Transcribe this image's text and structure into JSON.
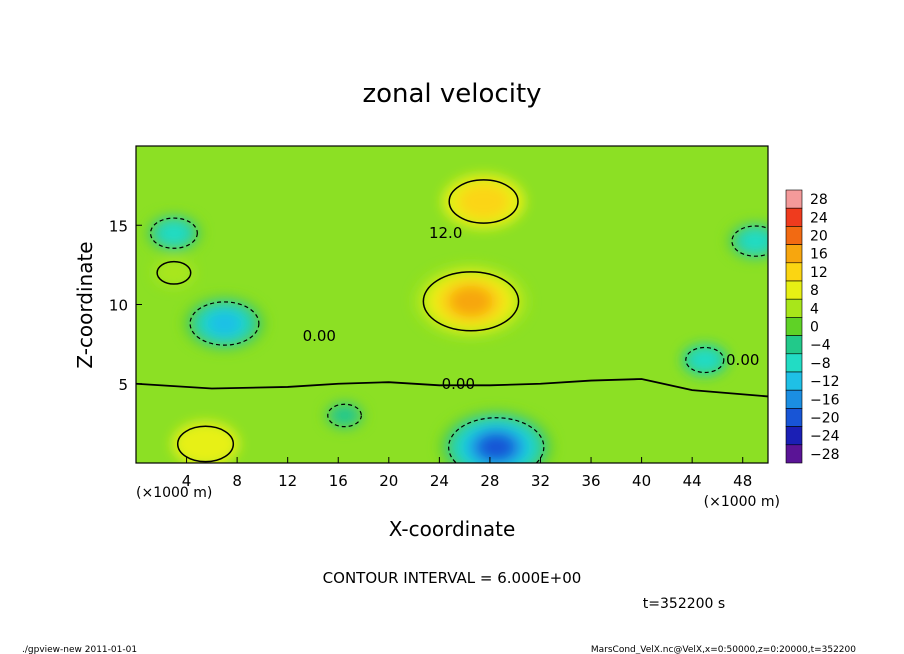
{
  "chart_data": {
    "type": "heatmap",
    "title": "zonal velocity",
    "xlabel": "X-coordinate",
    "ylabel": "Z-coordinate",
    "x_unit": "(×1000 m)",
    "y_unit": "(×1000 m)",
    "xlim": [
      0,
      50
    ],
    "ylim": [
      0,
      20
    ],
    "x_ticks": [
      4,
      8,
      12,
      16,
      20,
      24,
      28,
      32,
      36,
      40,
      44,
      48
    ],
    "y_ticks": [
      5,
      10,
      15
    ],
    "colorbar": {
      "levels": [
        28,
        24,
        20,
        16,
        12,
        8,
        4,
        0,
        -4,
        -8,
        -12,
        -16,
        -20,
        -24,
        -28
      ],
      "level_labels": [
        "28",
        "24",
        "20",
        "16",
        "12",
        "8",
        "4",
        "0",
        "−4",
        "−8",
        "−12",
        "−16",
        "−20",
        "−24",
        "−28"
      ],
      "colors": [
        "#f49a9a",
        "#ef3b1e",
        "#f26a12",
        "#f7a60e",
        "#fbd512",
        "#e7f014",
        "#a8e61a",
        "#5fd226",
        "#22c98a",
        "#22dcc4",
        "#1fc0e6",
        "#1b8ee2",
        "#1855d6",
        "#1b1fb5",
        "#5a1496"
      ]
    },
    "contour_labels": [
      "12.0",
      "0.00",
      "0.00",
      "0.00"
    ],
    "contour_interval": "CONTOUR INTERVAL = 6.000E+00",
    "time_label": "t=352200 s",
    "footer_left": "./gpview-new   2011-01-01",
    "footer_right": "MarsCond_VelX.nc@VelX,x=0:50000,z=0:20000,t=352200",
    "features": [
      {
        "kind": "max",
        "x": 26.5,
        "z": 10.2,
        "value": 18
      },
      {
        "kind": "max",
        "x": 27.5,
        "z": 16.5,
        "value": 12
      },
      {
        "kind": "max",
        "x": 5.5,
        "z": 1.2,
        "value": 9
      },
      {
        "kind": "max",
        "x": 3.0,
        "z": 12.0,
        "value": 4
      },
      {
        "kind": "min",
        "x": 7.0,
        "z": 8.8,
        "value": -12
      },
      {
        "kind": "min",
        "x": 28.5,
        "z": 1.0,
        "value": -18
      },
      {
        "kind": "min",
        "x": 3.0,
        "z": 14.5,
        "value": -7
      },
      {
        "kind": "min",
        "x": 49.0,
        "z": 14.0,
        "value": -7
      },
      {
        "kind": "min",
        "x": 45.0,
        "z": 6.5,
        "value": -5
      },
      {
        "kind": "min",
        "x": 16.5,
        "z": 3.0,
        "value": -4
      }
    ]
  }
}
